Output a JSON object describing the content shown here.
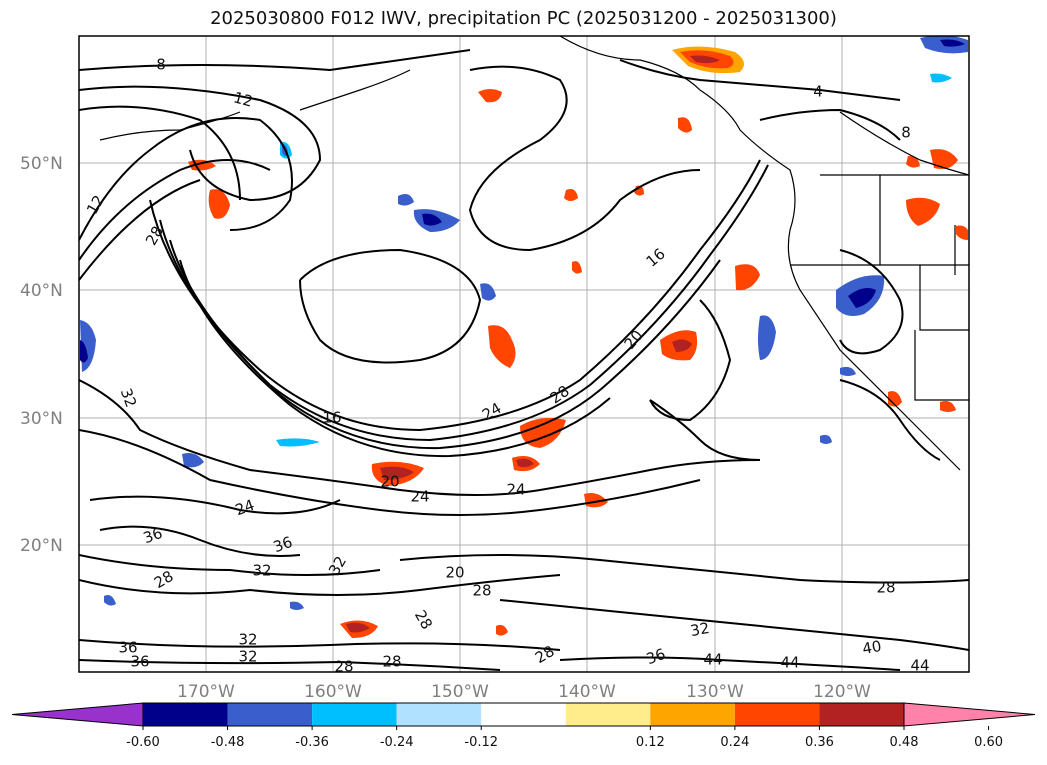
{
  "title": "2025030800 F012 IWV, precipitation PC (2025031200 - 2025031300)",
  "lat_labels": [
    "50°N",
    "40°N",
    "30°N",
    "20°N"
  ],
  "lon_labels": [
    "170°W",
    "160°W",
    "150°W",
    "140°W",
    "130°W",
    "120°W"
  ],
  "contour_labels": [
    "8",
    "12",
    "12",
    "28",
    "32",
    "16",
    "24",
    "28",
    "20",
    "16",
    "4",
    "8",
    "24",
    "20",
    "24",
    "24",
    "36",
    "36",
    "32",
    "32",
    "28",
    "20",
    "28",
    "28",
    "32",
    "28",
    "36",
    "44",
    "44",
    "40",
    "44",
    "28",
    "36",
    "32",
    "36",
    "32",
    "28",
    "28"
  ],
  "colorbar": {
    "tick_labels": [
      "-0.60",
      "-0.48",
      "-0.36",
      "-0.24",
      "-0.12",
      "0.12",
      "0.24",
      "0.36",
      "0.48",
      "0.60"
    ],
    "colors": [
      "#9932cc",
      "#00008b",
      "#3a5fcd",
      "#00bfff",
      "#b0e2ff",
      "#ffffff",
      "#ffec8b",
      "#ffa500",
      "#ff4500",
      "#b22222",
      "#ff82ab"
    ]
  }
}
